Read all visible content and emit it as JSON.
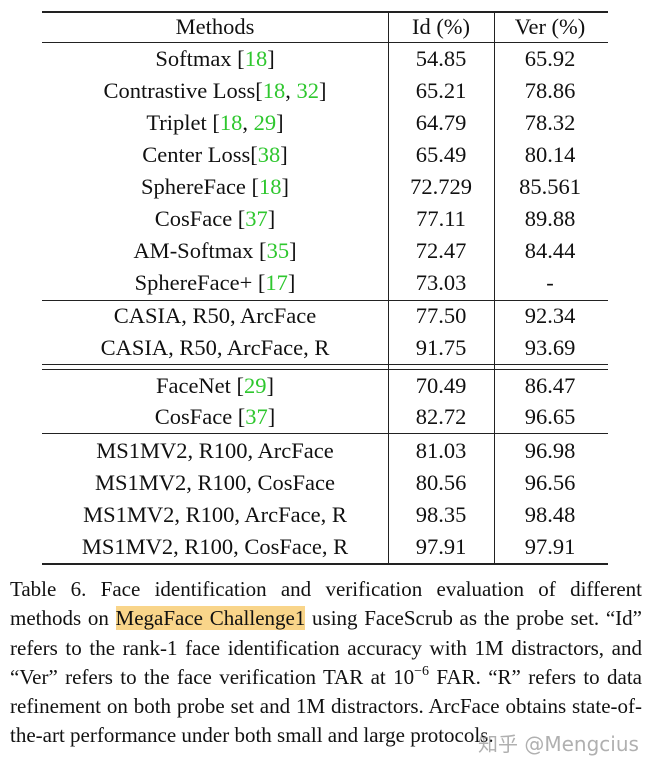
{
  "table": {
    "header": [
      "Methods",
      "Id (%)",
      "Ver (%)"
    ],
    "groups": [
      [
        {
          "method": [
            "Softmax [",
            "18",
            "]"
          ],
          "id": "54.85",
          "ver": "65.92"
        },
        {
          "method": [
            "Contrastive Loss[",
            "18",
            ", ",
            "32",
            "]"
          ],
          "id": "65.21",
          "ver": "78.86"
        },
        {
          "method": [
            "Triplet [",
            "18",
            ", ",
            "29",
            "]"
          ],
          "id": "64.79",
          "ver": "78.32"
        },
        {
          "method": [
            "Center Loss[",
            "38",
            "]"
          ],
          "id": "65.49",
          "ver": "80.14"
        },
        {
          "method": [
            "SphereFace [",
            "18",
            "]"
          ],
          "id": "72.729",
          "ver": "85.561"
        },
        {
          "method": [
            "CosFace [",
            "37",
            "]"
          ],
          "id": "77.11",
          "ver": "89.88"
        },
        {
          "method": [
            "AM-Softmax [",
            "35",
            "]"
          ],
          "id": "72.47",
          "ver": "84.44"
        },
        {
          "method": [
            "SphereFace+ [",
            "17",
            "]"
          ],
          "id": "73.03",
          "ver": "-"
        }
      ],
      [
        {
          "method": [
            "CASIA, R50, ArcFace"
          ],
          "id": "77.50",
          "ver": "92.34"
        },
        {
          "method": [
            "CASIA, R50, ArcFace, R"
          ],
          "id": "91.75",
          "ver": "93.69"
        }
      ],
      [
        {
          "method": [
            "FaceNet [",
            "29",
            "]"
          ],
          "id": "70.49",
          "ver": "86.47"
        },
        {
          "method": [
            "CosFace [",
            "37",
            "]"
          ],
          "id": "82.72",
          "ver": "96.65"
        }
      ],
      [
        {
          "method": [
            "MS1MV2, R100, ArcFace"
          ],
          "id": "81.03",
          "ver": "96.98"
        },
        {
          "method": [
            "MS1MV2, R100, CosFace"
          ],
          "id": "80.56",
          "ver": "96.56"
        },
        {
          "method": [
            "MS1MV2, R100, ArcFace, R"
          ],
          "id": "98.35",
          "ver": "98.48"
        },
        {
          "method": [
            "MS1MV2, R100, CosFace, R"
          ],
          "id": "97.91",
          "ver": "97.91"
        }
      ]
    ]
  },
  "caption": {
    "before": "Table 6. Face identification and verification evaluation of different methods on ",
    "highlight": "MegaFace Challenge1",
    "middle": " using FaceScrub as the probe set. “Id” refers to the rank-1 face identification accuracy with 1M distractors, and “Ver” refers to the face verification TAR at ",
    "base": "10",
    "exponent": "−6",
    "after": " FAR. “R” refers to data refinement on both probe set and 1M distractors. ArcFace obtains state-of-the-art performance under both small and large protocols."
  },
  "watermark": "知乎 @Mengcius"
}
